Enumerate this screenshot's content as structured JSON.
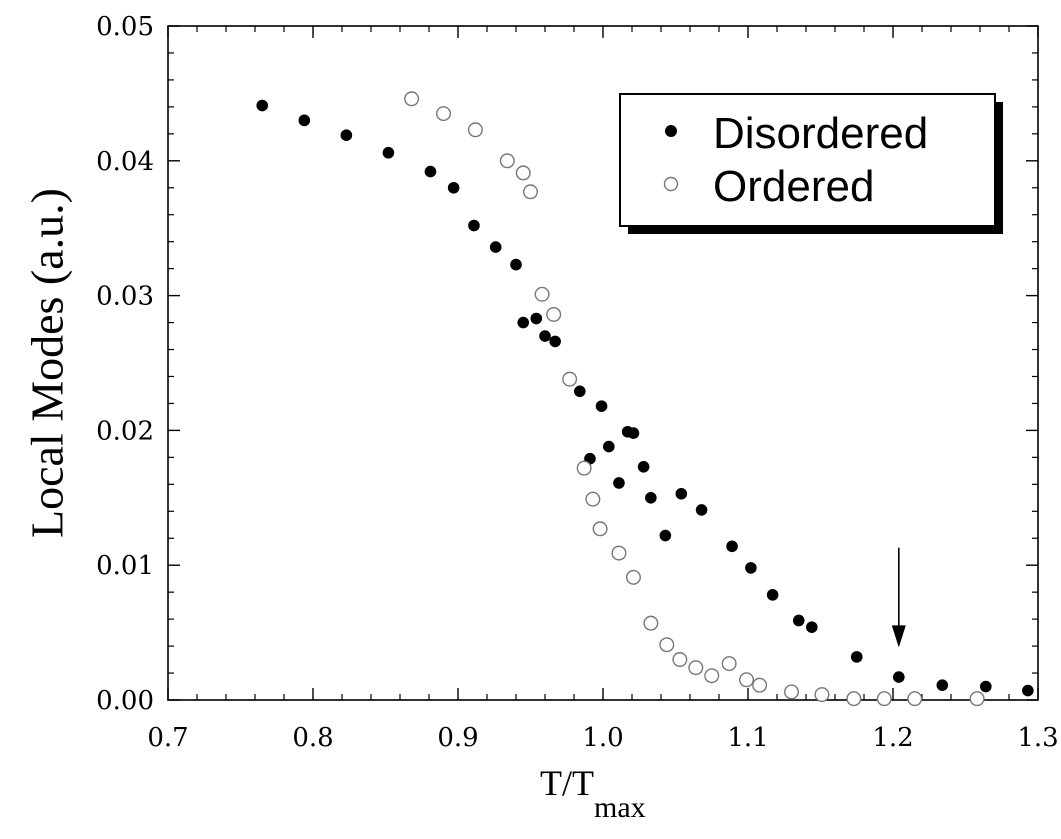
{
  "chart_data": {
    "type": "scatter",
    "xlabel": "T/T",
    "xlabel_subscript": "max",
    "ylabel": "Local Modes (a.u.)",
    "xlim": [
      0.7,
      1.3
    ],
    "ylim": [
      0.0,
      0.05
    ],
    "x_ticks": [
      "0.7",
      "0.8",
      "0.9",
      "1.0",
      "1.1",
      "1.2",
      "1.3"
    ],
    "y_ticks": [
      "0.00",
      "0.01",
      "0.02",
      "0.03",
      "0.04",
      "0.05"
    ],
    "grid": false,
    "legend_position": "top-right",
    "series": [
      {
        "name": "Disordered",
        "marker": "filled-circle",
        "color": "#000000",
        "points": [
          [
            0.765,
            0.0441
          ],
          [
            0.794,
            0.043
          ],
          [
            0.823,
            0.0419
          ],
          [
            0.852,
            0.0406
          ],
          [
            0.881,
            0.0392
          ],
          [
            0.897,
            0.038
          ],
          [
            0.911,
            0.0352
          ],
          [
            0.926,
            0.0336
          ],
          [
            0.94,
            0.0323
          ],
          [
            0.945,
            0.028
          ],
          [
            0.954,
            0.0283
          ],
          [
            0.96,
            0.027
          ],
          [
            0.967,
            0.0266
          ],
          [
            0.984,
            0.0229
          ],
          [
            0.991,
            0.0179
          ],
          [
            0.999,
            0.0218
          ],
          [
            1.004,
            0.0188
          ],
          [
            1.011,
            0.0161
          ],
          [
            1.017,
            0.0199
          ],
          [
            1.021,
            0.0198
          ],
          [
            1.028,
            0.0173
          ],
          [
            1.033,
            0.015
          ],
          [
            1.043,
            0.0122
          ],
          [
            1.054,
            0.0153
          ],
          [
            1.068,
            0.0141
          ],
          [
            1.089,
            0.0114
          ],
          [
            1.102,
            0.0098
          ],
          [
            1.117,
            0.0078
          ],
          [
            1.135,
            0.0059
          ],
          [
            1.144,
            0.0054
          ],
          [
            1.175,
            0.0032
          ],
          [
            1.204,
            0.0017
          ],
          [
            1.234,
            0.0011
          ],
          [
            1.264,
            0.001
          ],
          [
            1.293,
            0.0007
          ]
        ]
      },
      {
        "name": "Ordered",
        "marker": "open-circle",
        "color": "#000000",
        "points": [
          [
            0.868,
            0.0446
          ],
          [
            0.89,
            0.0435
          ],
          [
            0.912,
            0.0423
          ],
          [
            0.934,
            0.04
          ],
          [
            0.945,
            0.0391
          ],
          [
            0.95,
            0.0377
          ],
          [
            0.958,
            0.0301
          ],
          [
            0.966,
            0.0286
          ],
          [
            0.977,
            0.0238
          ],
          [
            0.987,
            0.0172
          ],
          [
            0.993,
            0.0149
          ],
          [
            0.998,
            0.0127
          ],
          [
            1.011,
            0.0109
          ],
          [
            1.021,
            0.0091
          ],
          [
            1.033,
            0.0057
          ],
          [
            1.044,
            0.0041
          ],
          [
            1.053,
            0.003
          ],
          [
            1.064,
            0.0024
          ],
          [
            1.075,
            0.0018
          ],
          [
            1.087,
            0.0027
          ],
          [
            1.099,
            0.0015
          ],
          [
            1.108,
            0.0011
          ],
          [
            1.13,
            0.0006
          ],
          [
            1.151,
            0.0004
          ],
          [
            1.173,
            0.0001
          ],
          [
            1.194,
            0.0001
          ],
          [
            1.215,
            0.0001
          ],
          [
            1.258,
            0.0001
          ]
        ]
      }
    ],
    "annotations": [
      {
        "type": "arrow",
        "x": 1.204,
        "y_from": 0.0113,
        "y_to": 0.0039,
        "direction": "down"
      }
    ]
  }
}
